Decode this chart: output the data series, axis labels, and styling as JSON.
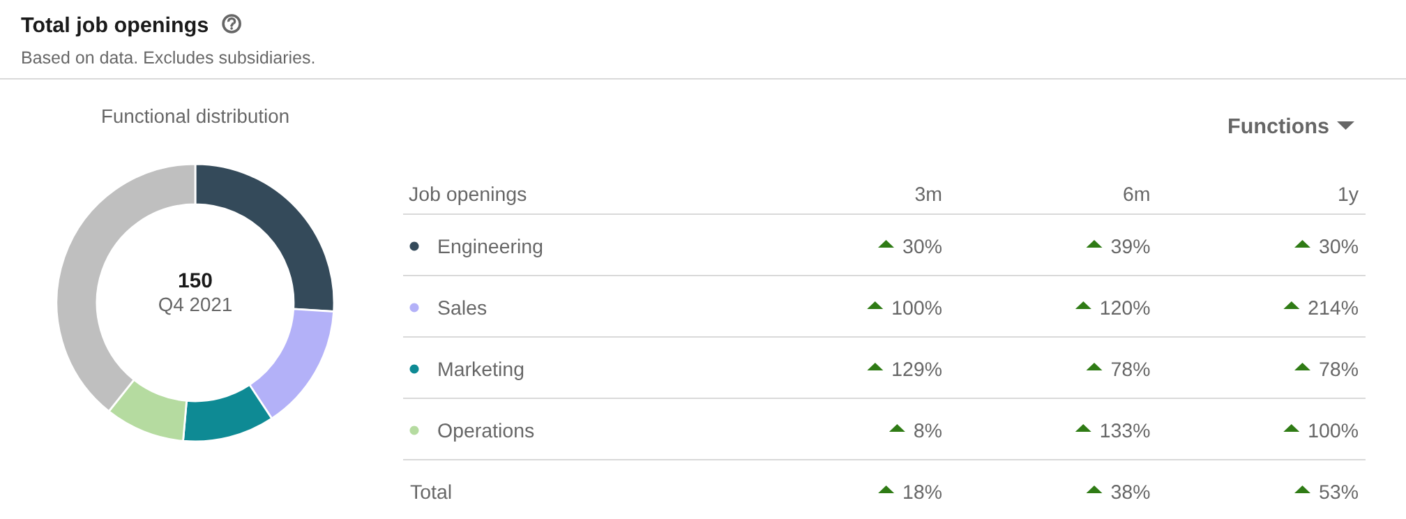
{
  "chart_data": [
    {
      "type": "donut",
      "title": "Total job openings",
      "subtitle": "Based on data. Excludes subsidiaries.",
      "annotations": [
        "Functional distribution",
        "150",
        "Q4 2021"
      ],
      "categories": [
        "Engineering",
        "Sales",
        "Marketing",
        "Operations",
        null
      ],
      "values": [
        26.0,
        14.7,
        10.7,
        9.3,
        39.3
      ],
      "colors": [
        "#344a5a",
        "#b3b1f8",
        "#0e8a94",
        "#b5dba0",
        "#bfbfbf"
      ],
      "legend": "right"
    },
    {
      "type": "other",
      "annotations": [
        "Functions"
      ],
      "ylabel": "Job openings",
      "categories": [
        "3m",
        "6m",
        "1y"
      ],
      "y_categories": [
        null,
        null,
        null,
        null,
        "Total"
      ],
      "cell_labels": [
        [
          "30%",
          "39%",
          "30%"
        ],
        [
          "100%",
          "120%",
          "214%"
        ],
        [
          "129%",
          "78%",
          "78%"
        ],
        [
          "8%",
          "133%",
          "100%"
        ],
        [
          "18%",
          "38%",
          "53%"
        ]
      ]
    }
  ]
}
